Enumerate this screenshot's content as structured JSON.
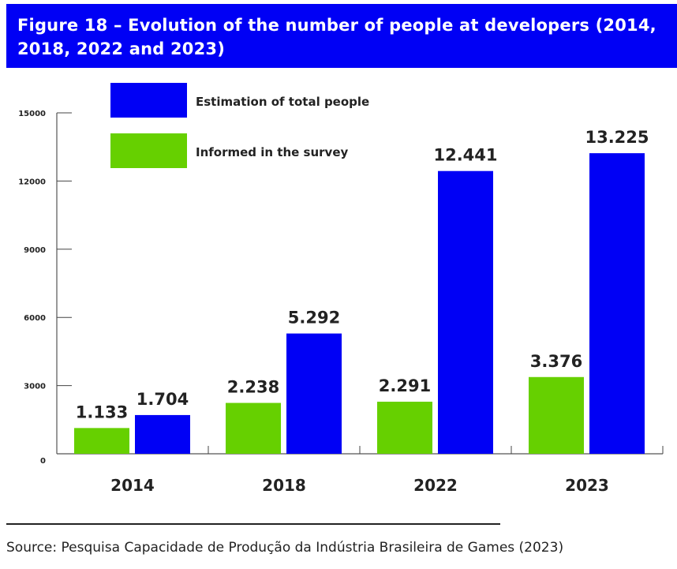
{
  "figure": {
    "title": "Figure 18 – Evolution of the number of people at developers (2014, 2018, 2022 and 2023)",
    "source": "Source: Pesquisa Capacidade de Produção da Indústria Brasileira de Games (2023)"
  },
  "colors": {
    "title_background": "#0000f5",
    "estimation": "#0000f5",
    "informed": "#66d000"
  },
  "chart_data": {
    "type": "bar",
    "title": "Figure 18 – Evolution of the number of people at developers (2014, 2018, 2022 and 2023)",
    "xlabel": "",
    "ylabel": "",
    "categories": [
      "2014",
      "2018",
      "2022",
      "2023"
    ],
    "series": [
      {
        "name": "Informed in the survey",
        "color": "#66d000",
        "values": [
          1133,
          2238,
          2291,
          3376
        ],
        "labels": [
          "1.133",
          "2.238",
          "2.291",
          "3.376"
        ]
      },
      {
        "name": "Estimation of total people",
        "color": "#0000f5",
        "values": [
          1704,
          5292,
          12441,
          13225
        ],
        "labels": [
          "1.704",
          "5.292",
          "12.441",
          "13.225"
        ]
      }
    ],
    "ylim": [
      0,
      15000
    ],
    "yticks": [
      0,
      3000,
      6000,
      9000,
      12000,
      15000
    ],
    "ytick_labels": [
      "0",
      "3000",
      "6000",
      "9000",
      "12000",
      "15000"
    ],
    "grid": false,
    "legend": {
      "placement": "top-left",
      "entries": [
        "Estimation of total people",
        "Informed in the survey"
      ]
    }
  }
}
